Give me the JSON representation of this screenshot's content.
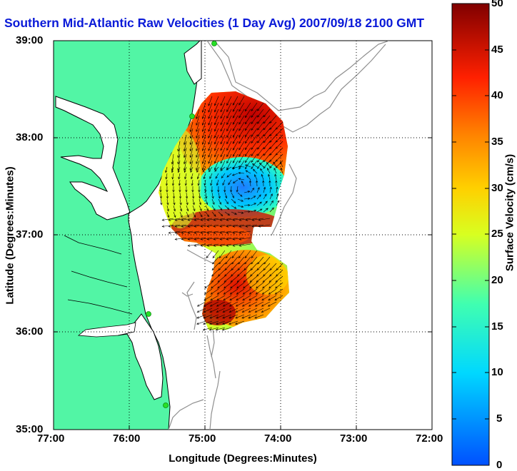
{
  "title": "Southern Mid-Atlantic Raw Velocities (1 Day Avg) 2007/09/18 2100 GMT",
  "axes": {
    "xlabel": "Longitude (Degrees:Minutes)",
    "ylabel": "Latitude (Degrees:Minutes)",
    "x_ticks": [
      "77:00",
      "76:00",
      "75:00",
      "74:00",
      "73:00",
      "72:00"
    ],
    "y_ticks": [
      "39:00",
      "38:00",
      "37:00",
      "36:00",
      "35:00"
    ]
  },
  "colorbar": {
    "label": "Surface Velocity (cm/s)",
    "ticks": [
      "50",
      "45",
      "40",
      "35",
      "30",
      "25",
      "20",
      "15",
      "10",
      "5",
      "0"
    ],
    "range": [
      0,
      50
    ]
  },
  "colors": {
    "land": "#52f5a5",
    "water": "#ffffff",
    "title": "#0a1ad8",
    "bathymetry": "#8f8f8f",
    "stations": "#27e027"
  },
  "chart_data": {
    "type": "heatmap",
    "title": "Southern Mid-Atlantic Raw Velocities (1 Day Avg) 2007/09/18 2100 GMT",
    "xlabel": "Longitude (Degrees:Minutes)",
    "ylabel": "Latitude (Degrees:Minutes)",
    "xlim": [
      -77,
      -72
    ],
    "ylim": [
      35,
      39
    ],
    "grid": true,
    "colorbar_range": [
      0,
      50
    ],
    "units": "cm/s",
    "regions": [
      {
        "name": "north",
        "speed_cm_s": 45
      },
      {
        "name": "eddy-center",
        "speed_cm_s": 10
      },
      {
        "name": "mid-jet",
        "speed_cm_s": 42
      },
      {
        "name": "south",
        "speed_cm_s": 38
      }
    ],
    "stations": [
      {
        "lon": -74.88,
        "lat": 38.98
      },
      {
        "lon": -75.15,
        "lat": 38.22
      },
      {
        "lon": -75.98,
        "lat": 36.18
      },
      {
        "lon": -75.52,
        "lat": 35.07
      }
    ]
  }
}
